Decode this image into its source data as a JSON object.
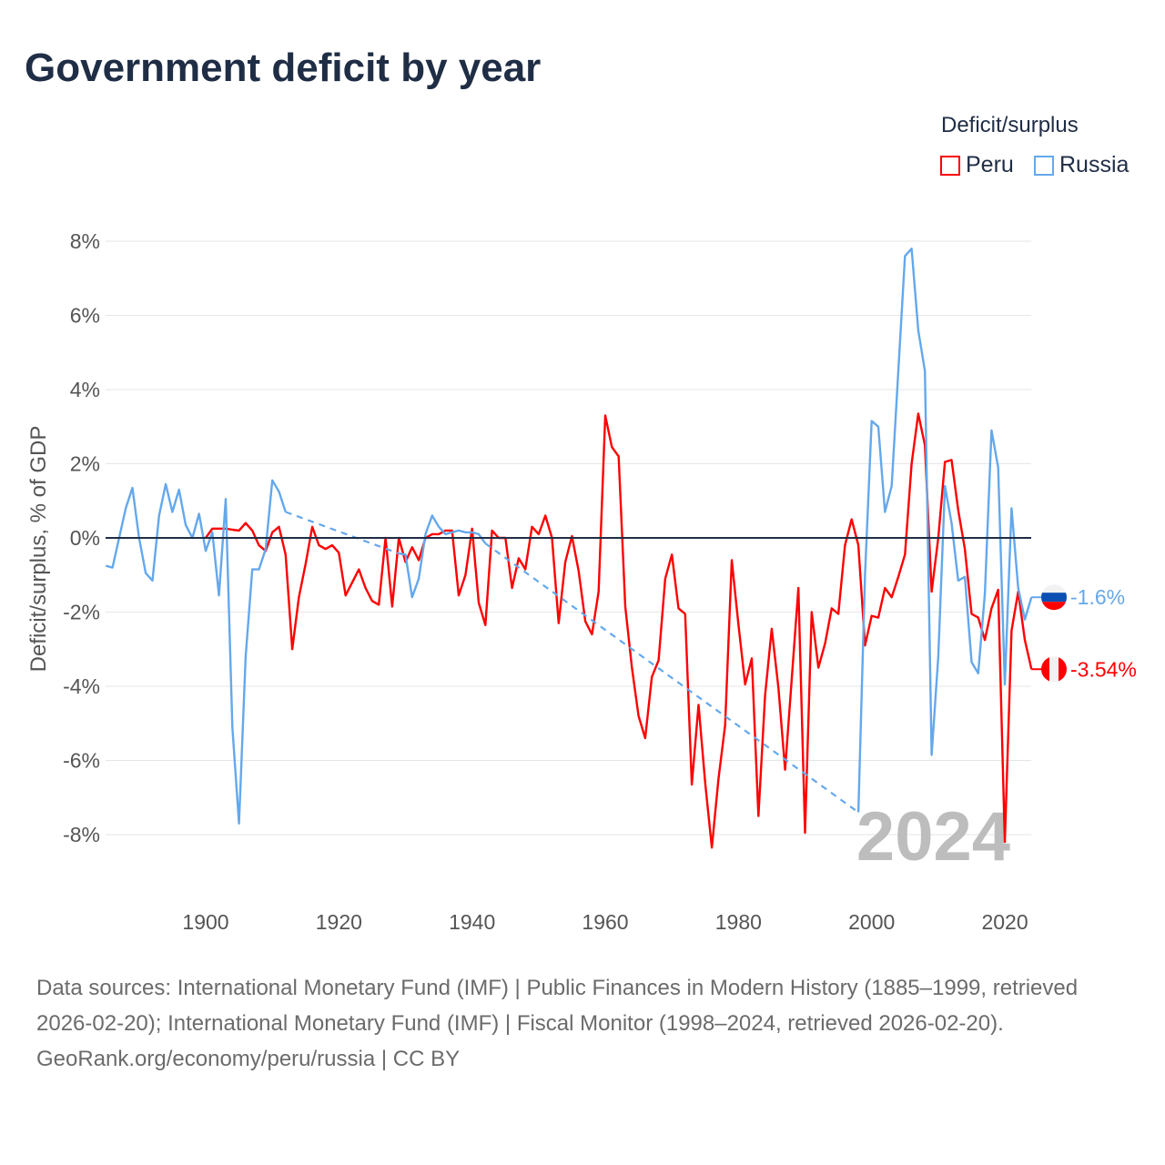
{
  "title": "Government deficit by year",
  "legend": {
    "title": "Deficit/surplus",
    "items": [
      {
        "label": "Peru",
        "color": "#ff0000"
      },
      {
        "label": "Russia",
        "color": "#64a8ec"
      }
    ]
  },
  "watermark_year": "2024",
  "footer": {
    "sources": "Data sources: International Monetary Fund (IMF) | Public Finances in Modern History (1885–1999, retrieved 2026-02-20); International Monetary Fund (IMF) | Fiscal Monitor (1998–2024, retrieved 2026-02-20).",
    "credit": "GeoRank.org/economy/peru/russia | CC BY"
  },
  "chart_data": {
    "type": "line",
    "title": "Government deficit by year",
    "xlabel": "",
    "ylabel": "Deficit/surplus, % of GDP",
    "xlim": [
      1885,
      2024
    ],
    "ylim": [
      -9,
      8.5
    ],
    "xticks": [
      1900,
      1920,
      1940,
      1960,
      1980,
      2000,
      2020
    ],
    "xtick_labels": [
      "1900",
      "1920",
      "1940",
      "1960",
      "1980",
      "2000",
      "2020"
    ],
    "yticks": [
      8,
      6,
      4,
      2,
      0,
      -2,
      -4,
      -6,
      -8
    ],
    "ytick_labels": [
      "8%",
      "6%",
      "4%",
      "2%",
      "0%",
      "-2%",
      "-4%",
      "-6%",
      "-8%"
    ],
    "grid": true,
    "legend_position": "top-right",
    "series": [
      {
        "name": "Peru",
        "color": "#ff0000",
        "end_label": "-3.54%",
        "x": [
          1900,
          1901,
          1902,
          1903,
          1904,
          1905,
          1906,
          1907,
          1908,
          1909,
          1910,
          1911,
          1912,
          1913,
          1914,
          1915,
          1916,
          1917,
          1918,
          1919,
          1920,
          1921,
          1922,
          1923,
          1924,
          1925,
          1926,
          1927,
          1928,
          1929,
          1930,
          1931,
          1932,
          1933,
          1934,
          1935,
          1936,
          1937,
          1938,
          1939,
          1940,
          1941,
          1942,
          1943,
          1944,
          1945,
          1946,
          1947,
          1948,
          1949,
          1950,
          1951,
          1952,
          1953,
          1954,
          1955,
          1956,
          1957,
          1958,
          1959,
          1960,
          1961,
          1962,
          1963,
          1964,
          1965,
          1966,
          1967,
          1968,
          1969,
          1970,
          1971,
          1972,
          1973,
          1974,
          1975,
          1976,
          1977,
          1978,
          1979,
          1980,
          1981,
          1982,
          1983,
          1984,
          1985,
          1986,
          1987,
          1988,
          1989,
          1990,
          1991,
          1992,
          1993,
          1994,
          1995,
          1996,
          1997,
          1998,
          1999,
          2000,
          2001,
          2002,
          2003,
          2004,
          2005,
          2006,
          2007,
          2008,
          2009,
          2010,
          2011,
          2012,
          2013,
          2014,
          2015,
          2016,
          2017,
          2018,
          2019,
          2020,
          2021,
          2022,
          2023,
          2024
        ],
        "y": [
          0,
          0.25,
          0.25,
          0.25,
          0.22,
          0.2,
          0.4,
          0.2,
          -0.2,
          -0.35,
          0.15,
          0.3,
          -0.45,
          -3.0,
          -1.6,
          -0.7,
          0.3,
          -0.2,
          -0.3,
          -0.2,
          -0.4,
          -1.55,
          -1.2,
          -0.85,
          -1.35,
          -1.7,
          -1.8,
          0,
          -1.85,
          0,
          -0.65,
          -0.25,
          -0.6,
          0,
          0.1,
          0.1,
          0.2,
          0.2,
          -1.55,
          -1.0,
          0.25,
          -1.75,
          -2.35,
          0.2,
          0,
          0,
          -1.35,
          -0.55,
          -0.85,
          0.3,
          0.1,
          0.6,
          0,
          -2.3,
          -0.65,
          0.05,
          -0.9,
          -2.25,
          -2.6,
          -1.45,
          3.3,
          2.45,
          2.2,
          -1.85,
          -3.5,
          -4.8,
          -5.4,
          -3.75,
          -3.3,
          -1.1,
          -0.45,
          -1.9,
          -2.05,
          -6.65,
          -4.5,
          -6.6,
          -8.35,
          -6.5,
          -5.05,
          -0.6,
          -2.35,
          -3.95,
          -3.25,
          -7.5,
          -4.25,
          -2.45,
          -4.05,
          -6.25,
          -3.8,
          -1.35,
          -7.95,
          -2.0,
          -3.5,
          -2.85,
          -1.9,
          -2.05,
          -0.2,
          0.5,
          -0.2,
          -2.9,
          -2.1,
          -2.15,
          -1.35,
          -1.6,
          -1.05,
          -0.45,
          2.0,
          3.35,
          2.5,
          -1.45,
          0,
          2.05,
          2.1,
          0.75,
          -0.3,
          -2.05,
          -2.15,
          -2.75,
          -1.9,
          -1.4,
          -8.2,
          -2.5,
          -1.45,
          -2.75,
          -3.54
        ]
      },
      {
        "name": "Russia",
        "color": "#64a8ec",
        "end_label": "-1.6%",
        "x": [
          1885,
          1886,
          1887,
          1888,
          1889,
          1890,
          1891,
          1892,
          1893,
          1894,
          1895,
          1896,
          1897,
          1898,
          1899,
          1900,
          1901,
          1902,
          1903,
          1904,
          1905,
          1906,
          1907,
          1908,
          1909,
          1910,
          1911,
          1912,
          1929,
          1930,
          1931,
          1932,
          1933,
          1934,
          1935,
          1936,
          1937,
          1938,
          1939,
          1940,
          1941,
          1942,
          1998,
          1999,
          2000,
          2001,
          2002,
          2003,
          2004,
          2005,
          2006,
          2007,
          2008,
          2009,
          2010,
          2011,
          2012,
          2013,
          2014,
          2015,
          2016,
          2017,
          2018,
          2019,
          2020,
          2021,
          2022,
          2023,
          2024
        ],
        "y": [
          -0.75,
          -0.8,
          0,
          0.8,
          1.35,
          0,
          -0.95,
          -1.15,
          0.6,
          1.45,
          0.7,
          1.3,
          0.35,
          0,
          0.65,
          -0.35,
          0.15,
          -1.55,
          1.05,
          -5.1,
          -7.7,
          -3.2,
          -0.85,
          -0.85,
          -0.3,
          1.55,
          1.25,
          0.7,
          -0.42,
          -0.45,
          -1.6,
          -1.1,
          0.1,
          0.6,
          0.3,
          0.1,
          0.15,
          0.2,
          0.15,
          0.15,
          0.1,
          -0.15,
          -7.4,
          -1.0,
          3.15,
          3.0,
          0.7,
          1.4,
          4.5,
          7.6,
          7.8,
          5.6,
          4.5,
          -5.85,
          -3.2,
          1.4,
          0.4,
          -1.15,
          -1.05,
          -3.35,
          -3.65,
          -1.5,
          2.9,
          1.9,
          -3.95,
          0.8,
          -1.35,
          -2.2,
          -1.6
        ]
      }
    ]
  }
}
